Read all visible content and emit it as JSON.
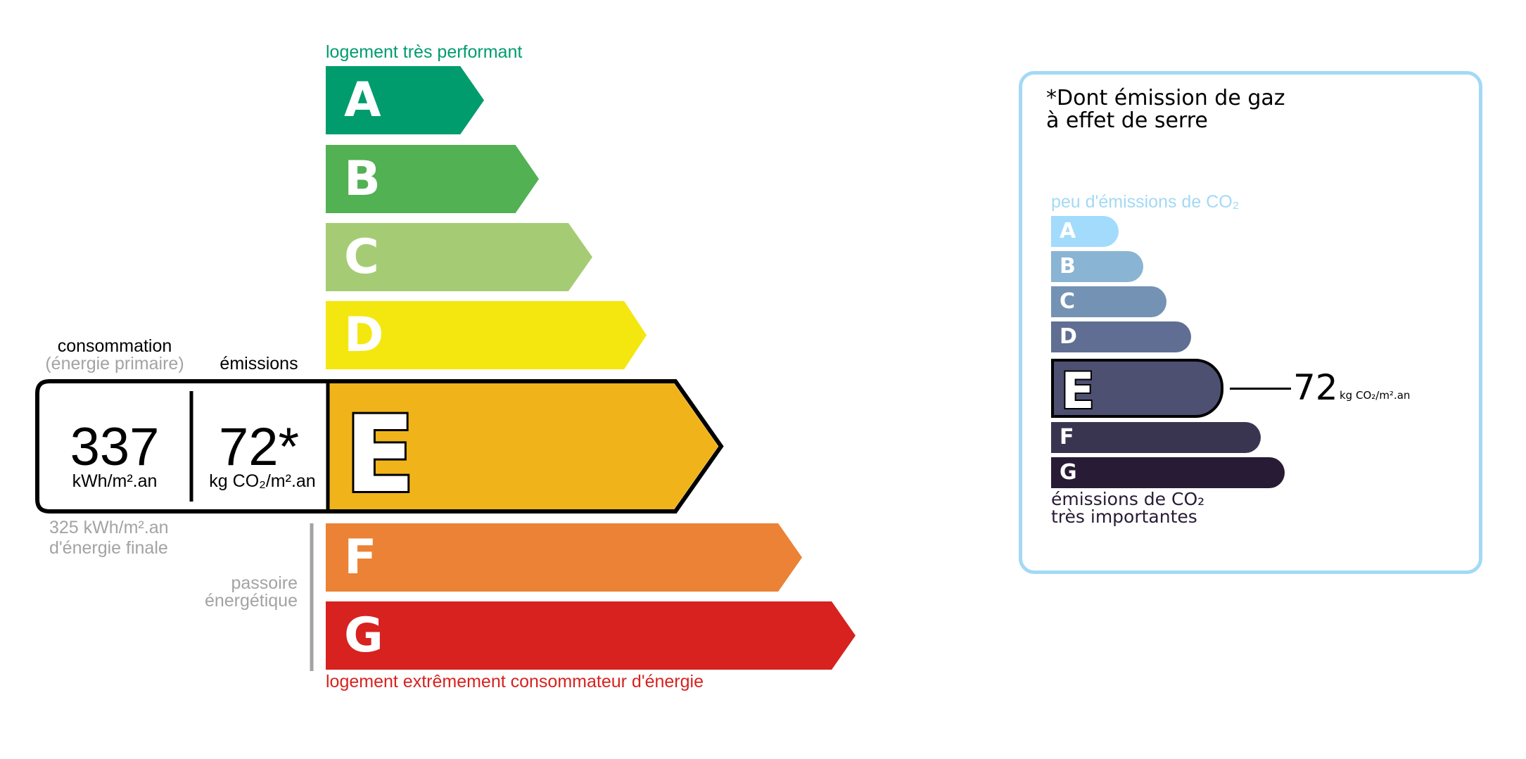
{
  "energy": {
    "top_label": "logement très performant",
    "bottom_label": "logement extrêmement consommateur d'énergie",
    "classes": [
      {
        "letter": "A",
        "color": "#009c6d"
      },
      {
        "letter": "B",
        "color": "#52b153"
      },
      {
        "letter": "C",
        "color": "#a5cc74"
      },
      {
        "letter": "D",
        "color": "#f4e70f"
      },
      {
        "letter": "E",
        "color": "#f0b41a"
      },
      {
        "letter": "F",
        "color": "#eb8235"
      },
      {
        "letter": "G",
        "color": "#d7221f"
      }
    ],
    "current_class": "E",
    "consumption_label": "consommation",
    "consumption_sublabel": "(énergie primaire)",
    "emissions_label": "émissions",
    "consumption_value": "337",
    "consumption_unit": "kWh/m².an",
    "emissions_value": "72*",
    "emissions_unit": "kg CO₂/m².an",
    "final_energy_value": "325 kWh/m².an",
    "final_energy_label": "d'énergie finale",
    "passoire_line1": "passoire",
    "passoire_line2": "énergétique",
    "top_label_color": "#009c6d",
    "bottom_label_color": "#d7221f"
  },
  "ges": {
    "title_line1": "*Dont émission de gaz",
    "title_line2": "à effet de serre",
    "top_label": "peu d'émissions de CO₂",
    "bottom_label_line1": "émissions de CO₂",
    "bottom_label_line2": "très importantes",
    "classes": [
      {
        "letter": "A",
        "color": "#a3dbfc"
      },
      {
        "letter": "B",
        "color": "#8ab4d3"
      },
      {
        "letter": "C",
        "color": "#7492b4"
      },
      {
        "letter": "D",
        "color": "#5f6e92"
      },
      {
        "letter": "E",
        "color": "#4d5071"
      },
      {
        "letter": "F",
        "color": "#393551"
      },
      {
        "letter": "G",
        "color": "#281b35"
      }
    ],
    "current_class": "E",
    "value": "72",
    "unit": "kg CO₂/m².an",
    "border_color": "#a3d9f5"
  }
}
